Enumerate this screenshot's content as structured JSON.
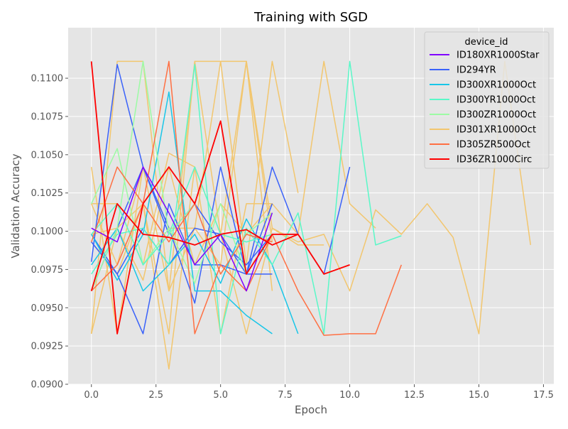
{
  "chart_data": {
    "type": "line",
    "title": "Training with SGD",
    "xlabel": "Epoch",
    "ylabel": "Validation Accuracy",
    "xlim": [
      -0.9,
      17.9
    ],
    "ylim": [
      0.09,
      0.1133
    ],
    "xticks": [
      0.0,
      2.5,
      5.0,
      7.5,
      10.0,
      12.5,
      15.0,
      17.5
    ],
    "xtick_labels": [
      "0.0",
      "2.5",
      "5.0",
      "7.5",
      "10.0",
      "12.5",
      "15.0",
      "17.5"
    ],
    "yticks": [
      0.09,
      0.0925,
      0.095,
      0.0975,
      0.1,
      0.1025,
      0.105,
      0.1075,
      0.11
    ],
    "ytick_labels": [
      "0.0900",
      "0.0925",
      "0.0950",
      "0.0975",
      "0.1000",
      "0.1025",
      "0.1050",
      "0.1075",
      "0.1100"
    ],
    "grid": true,
    "legend": {
      "title": "device_id",
      "placement": "top-right"
    },
    "series": [
      {
        "name": "ID180XR1000Star",
        "color": "#8000ff",
        "runs": [
          {
            "x": [
              0,
              1,
              2,
              3,
              4,
              5,
              6,
              7
            ],
            "y": [
              0.1002,
              0.0993,
              0.1042,
              0.1012,
              0.0978,
              0.0998,
              0.0961,
              0.1012
            ]
          }
        ]
      },
      {
        "name": "ID294YR",
        "color": "#3a62fa",
        "runs": [
          {
            "x": [
              0,
              1,
              2,
              3,
              4,
              5,
              6,
              7,
              8
            ],
            "y": [
              0.098,
              0.1109,
              0.1042,
              0.1002,
              0.0953,
              0.1042,
              0.0972,
              0.1042,
              0.0998
            ]
          },
          {
            "x": [
              0,
              1,
              2,
              3,
              4,
              5,
              6,
              7
            ],
            "y": [
              0.0998,
              0.0972,
              0.0933,
              0.1018,
              0.0978,
              0.0978,
              0.0972,
              0.0972
            ]
          },
          {
            "x": [
              0,
              1,
              2,
              3,
              4,
              5,
              6,
              7
            ],
            "y": [
              0.0993,
              0.0972,
              0.1002,
              0.0978,
              0.1002,
              0.0998,
              0.0972,
              0.1018
            ]
          },
          {
            "x": [
              0,
              1,
              2,
              3,
              4,
              5,
              6,
              7,
              8,
              9,
              10
            ],
            "y": [
              0.0961,
              0.1002,
              0.1042,
              0.0998,
              0.1018,
              0.0993,
              0.0978,
              0.0998,
              0.0998,
              0.0972,
              0.1042
            ]
          }
        ]
      },
      {
        "name": "ID300XR1000Oct",
        "color": "#18c6e8",
        "runs": [
          {
            "x": [
              0,
              1,
              2,
              3,
              4,
              5,
              6,
              7
            ],
            "y": [
              0.0998,
              0.0968,
              0.0998,
              0.1091,
              0.0961,
              0.0961,
              0.0945,
              0.0933
            ]
          },
          {
            "x": [
              0,
              1,
              2,
              3,
              4,
              5,
              6,
              7,
              8
            ],
            "y": [
              0.0978,
              0.1002,
              0.0961,
              0.0978,
              0.0998,
              0.0966,
              0.1008,
              0.0978,
              0.0933
            ]
          }
        ]
      },
      {
        "name": "ID300YR1000Oct",
        "color": "#5af8c8",
        "runs": [
          {
            "x": [
              0,
              1,
              2,
              3,
              4,
              5,
              6,
              7,
              8,
              9,
              10,
              11,
              12
            ],
            "y": [
              0.0972,
              0.0998,
              0.1002,
              0.0978,
              0.1109,
              0.0933,
              0.1002,
              0.0978,
              0.1012,
              0.0933,
              0.1111,
              0.0991,
              0.0997
            ]
          },
          {
            "x": [
              0,
              1,
              2,
              3,
              4,
              5,
              6,
              7
            ],
            "y": [
              0.0998,
              0.1018,
              0.0978,
              0.0998,
              0.1042,
              0.0998,
              0.0993,
              0.0998
            ]
          }
        ]
      },
      {
        "name": "ID300ZR1000Oct",
        "color": "#9cfba4",
        "runs": [
          {
            "x": [
              0,
              1,
              2,
              3,
              4,
              5,
              6,
              7
            ],
            "y": [
              0.1018,
              0.1054,
              0.0978,
              0.1002,
              0.0966,
              0.1018,
              0.0972,
              0.0998
            ]
          },
          {
            "x": [
              0,
              1,
              2,
              3,
              4,
              5,
              6,
              7
            ],
            "y": [
              0.0961,
              0.1002,
              0.1111,
              0.0998,
              0.1018,
              0.0972,
              0.0998,
              0.1012
            ]
          }
        ]
      },
      {
        "name": "ID301XR1000Oct",
        "color": "#f2c66e",
        "runs": [
          {
            "x": [
              0,
              1,
              2,
              3,
              4,
              5,
              6,
              7
            ],
            "y": [
              0.0933,
              0.1111,
              0.1111,
              0.0961,
              0.1111,
              0.1111,
              0.1111,
              0.0961
            ]
          },
          {
            "x": [
              0,
              1,
              2,
              3,
              4,
              5,
              6,
              7,
              8
            ],
            "y": [
              0.1042,
              0.0933,
              0.1042,
              0.1002,
              0.1002,
              0.1111,
              0.0978,
              0.1111,
              0.1025
            ]
          },
          {
            "x": [
              0,
              1,
              2,
              3,
              4,
              5,
              6,
              7,
              8,
              9,
              10,
              11
            ],
            "y": [
              0.1018,
              0.1018,
              0.0978,
              0.1051,
              0.1042,
              0.0933,
              0.1018,
              0.1018,
              0.0998,
              0.1111,
              0.1018,
              0.1002
            ]
          },
          {
            "x": [
              0,
              1,
              2,
              3,
              4,
              5,
              6,
              7,
              8,
              9,
              10,
              11,
              12,
              13,
              14,
              15,
              16,
              17
            ],
            "y": [
              0.0993,
              0.0972,
              0.1018,
              0.091,
              0.1042,
              0.0998,
              0.1111,
              0.1002,
              0.0993,
              0.0998,
              0.0961,
              0.1014,
              0.0998,
              0.1018,
              0.0996,
              0.0933,
              0.1111,
              0.0991
            ]
          },
          {
            "x": [
              0,
              1,
              2,
              3,
              4,
              5,
              6,
              7,
              8,
              9
            ],
            "y": [
              0.0933,
              0.1002,
              0.1018,
              0.0933,
              0.1111,
              0.0998,
              0.0933,
              0.1002,
              0.0991,
              0.0991
            ]
          },
          {
            "x": [
              0,
              1,
              2,
              3,
              4,
              5,
              6,
              7
            ],
            "y": [
              0.1018,
              0.0978,
              0.1042,
              0.0961,
              0.1002,
              0.0978,
              0.1111,
              0.0993
            ]
          },
          {
            "x": [
              0,
              1,
              2,
              3,
              4,
              5,
              6,
              7
            ],
            "y": [
              0.0998,
              0.1002,
              0.0968,
              0.1042,
              0.0978,
              0.1018,
              0.0998,
              0.1018
            ]
          }
        ]
      },
      {
        "name": "ID305ZR500Oct",
        "color": "#ff7043",
        "runs": [
          {
            "x": [
              0,
              1,
              2,
              3,
              4,
              5,
              6,
              7,
              8,
              9,
              10,
              11,
              12
            ],
            "y": [
              0.0993,
              0.1042,
              0.1018,
              0.1111,
              0.0933,
              0.0978,
              0.0961,
              0.0998,
              0.0961,
              0.0932,
              0.0933,
              0.0933,
              0.0978
            ]
          },
          {
            "x": [
              0,
              1,
              2,
              3,
              4,
              5,
              6,
              7
            ],
            "y": [
              0.0961,
              0.0978,
              0.1018,
              0.0993,
              0.1018,
              0.0972,
              0.0998,
              0.0993
            ]
          }
        ]
      },
      {
        "name": "ID36ZR1000Circ",
        "color": "#ff0000",
        "runs": [
          {
            "x": [
              0,
              1,
              2,
              3,
              4,
              5,
              6,
              7,
              8,
              9,
              10
            ],
            "y": [
              0.1111,
              0.0933,
              0.1018,
              0.1042,
              0.1018,
              0.1072,
              0.0972,
              0.0998,
              0.0998,
              0.0972,
              0.0978
            ]
          },
          {
            "x": [
              0,
              1,
              2,
              3,
              4,
              5,
              6,
              7,
              8
            ],
            "y": [
              0.0961,
              0.1018,
              0.0998,
              0.0996,
              0.0991,
              0.0998,
              0.1001,
              0.0991,
              0.0998
            ]
          }
        ]
      }
    ]
  }
}
